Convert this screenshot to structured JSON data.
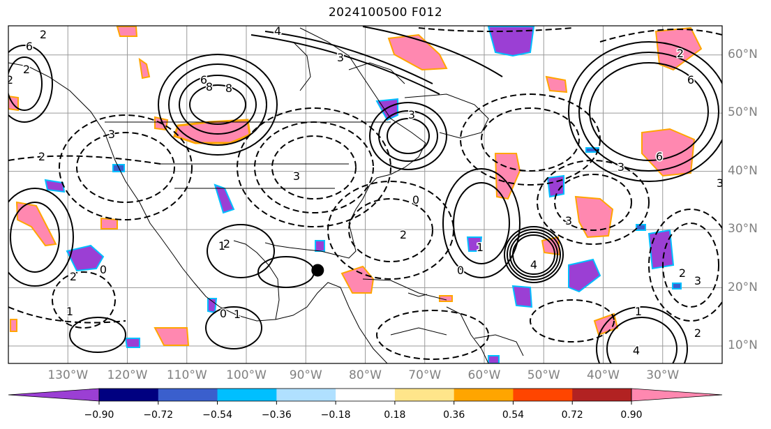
{
  "title": "2024100500 F012",
  "map": {
    "lon_range": [
      -140,
      -20
    ],
    "lat_range": [
      7,
      65
    ],
    "grid_interval_deg": 10,
    "lon_labels": [
      "130°W",
      "120°W",
      "110°W",
      "100°W",
      "90°W",
      "80°W",
      "70°W",
      "60°W",
      "50°W",
      "40°W",
      "30°W"
    ],
    "lat_labels": [
      "60°N",
      "50°N",
      "40°N",
      "30°N",
      "20°N",
      "10°N"
    ],
    "contour_labels": [
      "2",
      "6",
      "2",
      "8",
      "3",
      "6",
      "8",
      "2",
      "3",
      "4",
      "3",
      "6",
      "2",
      "3",
      "6",
      "2",
      "3",
      "3",
      "2",
      "0",
      "2",
      "1",
      "0",
      "0",
      "1",
      "4",
      "3",
      "2",
      "1",
      "0",
      "1",
      "2",
      "2",
      "1",
      "3",
      "4"
    ],
    "marker": {
      "type": "filled-circle",
      "lon": -88,
      "lat": 23
    }
  },
  "colorbar": {
    "colors": [
      "#9b3fd4",
      "#000080",
      "#3a5fcd",
      "#00bfff",
      "#b0e0ff",
      "#ffffff",
      "#ffe58a",
      "#ffa500",
      "#ff4500",
      "#b22222",
      "#ff88b0"
    ],
    "ticks": [
      "−0.90",
      "−0.72",
      "−0.54",
      "−0.36",
      "−0.18",
      "0.18",
      "0.36",
      "0.54",
      "0.72",
      "0.90"
    ]
  }
}
